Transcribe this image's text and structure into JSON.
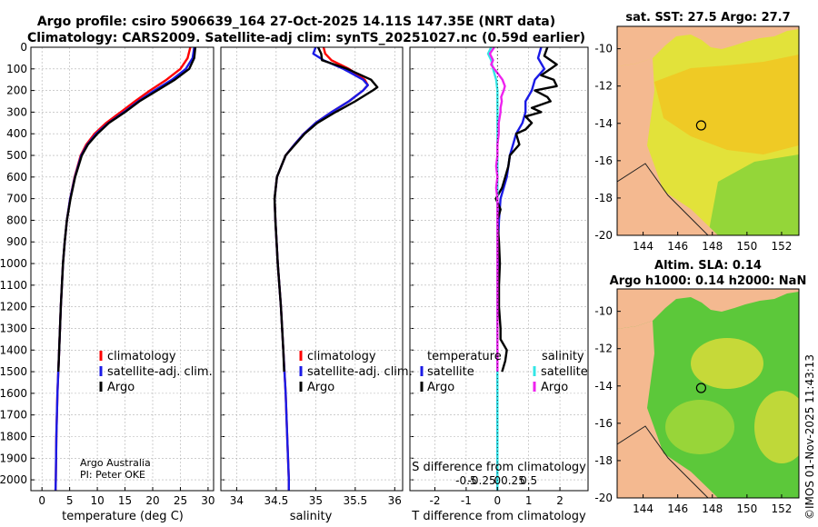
{
  "figure": {
    "title_line1": "Argo profile: csiro 5906639_164 27-Oct-2025 14.11S 147.35E (NRT data)",
    "title_line2": "Climatology: CARS2009. Satellite-adj clim: synTS_20251027.nc (0.59d earlier)",
    "credit_line1": "Argo Australia",
    "credit_line2": "PI: Peter OKE",
    "watermark": "©IMOS 01-Nov-2025 11:43:13"
  },
  "colors": {
    "climatology": "#ff0000",
    "satellite": "#1a1ae6",
    "argo": "#000000",
    "s_satellite": "#33e6e6",
    "s_argo": "#ee22ee",
    "land": "#f4b990",
    "grid": "#b0b0b0"
  },
  "legends": {
    "temperature": [
      "climatology",
      "satellite-adj. clim.",
      "Argo"
    ],
    "salinity": [
      "climatology",
      "satellite-adj. clim.",
      "Argo"
    ],
    "diff_temp_header": "temperature",
    "diff_sal_header": "salinity",
    "diff_temp_items": [
      "satellite",
      "Argo"
    ],
    "diff_sal_items": [
      "satellite",
      "Argo"
    ]
  },
  "maps": [
    {
      "title_line1": "sat. SST: 27.5 Argo: 27.7",
      "title_line2": "",
      "xticks": [
        144,
        146,
        148,
        150,
        152
      ],
      "yticks": [
        -10,
        -12,
        -14,
        -16,
        -18,
        -20
      ],
      "lon_range": [
        142.5,
        153
      ],
      "lat_range": [
        -20,
        -8.8
      ],
      "float_lon": 147.35,
      "float_lat": -14.11
    },
    {
      "title_line1": "Altim. SLA: 0.14",
      "title_line2": "Argo h1000: 0.14 h2000: NaN",
      "xticks": [
        144,
        146,
        148,
        150,
        152
      ],
      "yticks": [
        -10,
        -12,
        -14,
        -16,
        -18,
        -20
      ],
      "lon_range": [
        142.5,
        153
      ],
      "lat_range": [
        -20,
        -8.8
      ],
      "float_lon": 147.35,
      "float_lat": -14.11
    }
  ],
  "chart_data": [
    {
      "type": "line",
      "name": "temperature",
      "xlabel": "temperature (deg C)",
      "ylabel": "",
      "xlim": [
        -2,
        31
      ],
      "ylim": [
        0,
        2050
      ],
      "y_reversed": true,
      "xticks": [
        0,
        5,
        10,
        15,
        20,
        25,
        30
      ],
      "yticks": [
        0,
        100,
        200,
        300,
        400,
        500,
        600,
        700,
        800,
        900,
        1000,
        1100,
        1200,
        1300,
        1400,
        1500,
        1600,
        1700,
        1800,
        1900,
        2000
      ],
      "series": [
        {
          "name": "climatology",
          "color_key": "climatology",
          "depth": [
            0,
            50,
            100,
            150,
            200,
            250,
            300,
            350,
            400,
            450,
            500,
            600,
            700,
            800,
            900,
            1000,
            1200,
            1400,
            1600,
            1800,
            2000,
            2050
          ],
          "values": [
            26.8,
            26.3,
            25.0,
            22.5,
            19.5,
            16.8,
            14.2,
            11.6,
            9.5,
            8.0,
            7.0,
            5.9,
            5.1,
            4.5,
            4.1,
            3.8,
            3.4,
            3.1,
            2.8,
            2.6,
            2.5,
            2.45
          ]
        },
        {
          "name": "satellite-adj. clim.",
          "color_key": "satellite",
          "depth": [
            0,
            50,
            100,
            150,
            200,
            250,
            300,
            350,
            400,
            450,
            500,
            600,
            700,
            800,
            900,
            1000,
            1200,
            1400,
            1600,
            1800,
            2000,
            2050
          ],
          "values": [
            27.5,
            27.2,
            26.0,
            23.5,
            20.3,
            17.4,
            14.8,
            12.0,
            9.8,
            8.2,
            7.1,
            5.95,
            5.1,
            4.5,
            4.1,
            3.8,
            3.4,
            3.1,
            2.8,
            2.6,
            2.5,
            2.45
          ]
        },
        {
          "name": "Argo",
          "color_key": "argo",
          "depth": [
            0,
            50,
            100,
            150,
            200,
            250,
            300,
            350,
            400,
            450,
            500,
            600,
            700,
            800,
            900,
            1000,
            1200,
            1400,
            1500
          ],
          "values": [
            27.7,
            27.5,
            26.6,
            24.0,
            20.8,
            17.6,
            15.0,
            12.1,
            10.0,
            8.3,
            7.2,
            6.0,
            5.15,
            4.5,
            4.1,
            3.8,
            3.4,
            3.1,
            2.95
          ]
        }
      ]
    },
    {
      "type": "line",
      "name": "salinity",
      "xlabel": "salinity",
      "ylabel": "",
      "xlim": [
        33.8,
        36.1
      ],
      "ylim": [
        0,
        2050
      ],
      "y_reversed": true,
      "xticks": [
        34,
        34.5,
        35,
        35.5,
        36
      ],
      "series": [
        {
          "name": "climatology",
          "color_key": "climatology",
          "depth": [
            0,
            30,
            60,
            100,
            150,
            175,
            200,
            250,
            300,
            350,
            400,
            450,
            500,
            600,
            700,
            800,
            1000,
            1200,
            1400,
            1600,
            1800,
            2000,
            2050
          ],
          "values": [
            35.1,
            35.12,
            35.2,
            35.42,
            35.62,
            35.66,
            35.6,
            35.42,
            35.2,
            35.0,
            34.85,
            34.73,
            34.62,
            34.51,
            34.48,
            34.49,
            34.52,
            34.56,
            34.59,
            34.62,
            34.64,
            34.66,
            34.66
          ]
        },
        {
          "name": "satellite-adj. clim.",
          "color_key": "satellite",
          "depth": [
            0,
            30,
            60,
            100,
            150,
            175,
            200,
            250,
            300,
            350,
            400,
            450,
            500,
            600,
            700,
            800,
            1000,
            1200,
            1400,
            1600,
            1800,
            2000,
            2050
          ],
          "values": [
            35.0,
            34.97,
            35.1,
            35.35,
            35.6,
            35.66,
            35.6,
            35.42,
            35.2,
            35.0,
            34.85,
            34.73,
            34.62,
            34.51,
            34.48,
            34.49,
            34.52,
            34.56,
            34.59,
            34.62,
            34.64,
            34.66,
            34.66
          ]
        },
        {
          "name": "Argo",
          "color_key": "argo",
          "depth": [
            0,
            30,
            60,
            100,
            150,
            185,
            200,
            250,
            300,
            350,
            400,
            450,
            500,
            600,
            700,
            800,
            1000,
            1200,
            1400,
            1500
          ],
          "values": [
            35.03,
            35.07,
            35.08,
            35.4,
            35.7,
            35.78,
            35.72,
            35.5,
            35.25,
            35.02,
            34.86,
            34.74,
            34.62,
            34.51,
            34.48,
            34.49,
            34.52,
            34.56,
            34.59,
            34.6
          ]
        }
      ]
    },
    {
      "type": "line",
      "name": "difference",
      "xlabel": "T difference from climatology",
      "xlabel2": "S difference from climatology",
      "xlim": [
        -2.8,
        2.9
      ],
      "ylim": [
        0,
        2050
      ],
      "y_reversed": true,
      "xticks": [
        -2,
        -1,
        0,
        1,
        2
      ],
      "s_axis_factor": 2,
      "s_ticks": [
        -0.5,
        -0.25,
        0,
        0.25,
        0.5
      ],
      "series": [
        {
          "name": "T satellite",
          "color_key": "satellite",
          "depth": [
            0,
            50,
            100,
            150,
            200,
            250,
            300,
            350,
            400,
            450,
            500,
            550,
            600,
            650,
            700,
            800,
            900,
            1000,
            1100,
            1200,
            1300,
            1400,
            1500,
            1600,
            2050
          ],
          "values": [
            1.4,
            1.3,
            1.5,
            1.2,
            1.1,
            0.9,
            0.9,
            0.8,
            0.6,
            0.5,
            0.4,
            0.35,
            0.3,
            0.2,
            0.1,
            0.05,
            0.02,
            0.02,
            0.02,
            0.0,
            0.0,
            0.0,
            0.0,
            0.0,
            0.0
          ]
        },
        {
          "name": "T Argo",
          "color_key": "argo",
          "depth": [
            0,
            40,
            80,
            100,
            130,
            150,
            180,
            200,
            230,
            250,
            280,
            300,
            320,
            350,
            380,
            400,
            450,
            500,
            550,
            600,
            650,
            700,
            750,
            800,
            900,
            1000,
            1100,
            1200,
            1300,
            1350,
            1400,
            1450,
            1500
          ],
          "values": [
            1.6,
            1.5,
            1.9,
            1.7,
            1.4,
            1.8,
            1.9,
            1.2,
            1.6,
            1.7,
            1.1,
            1.4,
            0.9,
            1.1,
            0.9,
            0.6,
            0.7,
            0.4,
            0.35,
            0.25,
            0.15,
            -0.05,
            0.1,
            0.0,
            0.05,
            0.08,
            0.05,
            0.05,
            0.1,
            0.1,
            0.3,
            0.25,
            0.15
          ]
        },
        {
          "name": "S satellite",
          "color_key": "s_satellite",
          "depth": [
            0,
            30,
            60,
            100,
            150,
            200,
            250,
            300,
            350,
            400,
            450,
            500,
            600,
            700,
            800,
            900,
            1000,
            1200,
            1400,
            1600,
            1800,
            2000,
            2050
          ],
          "values": [
            -0.1,
            -0.15,
            -0.1,
            -0.07,
            -0.02,
            0.0,
            0.0,
            0.0,
            0.0,
            0.0,
            0.0,
            0.0,
            0.0,
            0.0,
            0.0,
            0.0,
            0.0,
            0.0,
            0.0,
            0.0,
            0.0,
            0.0,
            0.0
          ]
        },
        {
          "name": "S Argo",
          "color_key": "s_argo",
          "depth": [
            0,
            30,
            60,
            80,
            100,
            130,
            150,
            180,
            200,
            230,
            250,
            280,
            300,
            350,
            400,
            450,
            500,
            550,
            600,
            650,
            700,
            800,
            900,
            1000,
            1100,
            1200,
            1300,
            1400,
            1500
          ],
          "values": [
            -0.05,
            -0.12,
            -0.07,
            -0.1,
            -0.05,
            0.03,
            0.08,
            0.12,
            0.1,
            0.06,
            0.07,
            0.05,
            0.05,
            0.02,
            0.02,
            0.0,
            0.0,
            -0.02,
            0.0,
            -0.02,
            0.0,
            0.0,
            0.0,
            0.0,
            0.0,
            0.0,
            0.0,
            0.0,
            0.0
          ]
        }
      ]
    }
  ]
}
